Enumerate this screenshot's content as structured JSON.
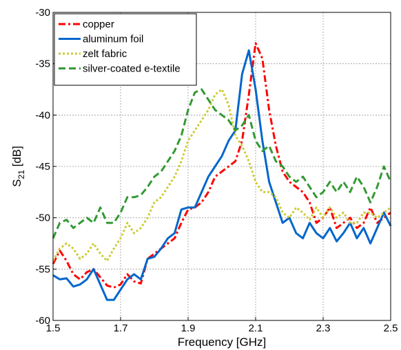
{
  "chart_data": {
    "type": "line",
    "x_label": "Frequency [GHz]",
    "y_label_parts": [
      "S",
      "21",
      " [dB]"
    ],
    "xlim": [
      1.5,
      2.5
    ],
    "xticks": [
      1.5,
      1.7,
      1.9,
      2.1,
      2.3,
      2.5
    ],
    "ylim": [
      -60,
      -30
    ],
    "yticks": [
      -60,
      -55,
      -50,
      -45,
      -40,
      -35,
      -30
    ],
    "grid": true,
    "legend": "upper-left",
    "x": [
      1.5,
      1.52,
      1.54,
      1.56,
      1.58,
      1.6,
      1.62,
      1.64,
      1.66,
      1.68,
      1.7,
      1.72,
      1.74,
      1.76,
      1.78,
      1.8,
      1.82,
      1.84,
      1.86,
      1.88,
      1.9,
      1.92,
      1.94,
      1.96,
      1.98,
      2.0,
      2.02,
      2.04,
      2.06,
      2.08,
      2.1,
      2.12,
      2.14,
      2.16,
      2.18,
      2.2,
      2.22,
      2.24,
      2.26,
      2.28,
      2.3,
      2.32,
      2.34,
      2.36,
      2.38,
      2.4,
      2.42,
      2.44,
      2.46,
      2.48,
      2.5
    ],
    "series": [
      {
        "name": "copper",
        "color": "#ff0000",
        "line_style": "dash-dot",
        "values": [
          -54.5,
          -53.2,
          -54.2,
          -55.5,
          -56.0,
          -55.3,
          -55.0,
          -55.8,
          -56.6,
          -56.8,
          -56.5,
          -55.5,
          -56.2,
          -56.4,
          -54.0,
          -53.5,
          -53.0,
          -52.5,
          -52.0,
          -50.5,
          -49.2,
          -49.0,
          -48.5,
          -47.5,
          -46.0,
          -45.5,
          -45.0,
          -44.5,
          -42.5,
          -38.0,
          -33.0,
          -34.5,
          -39.5,
          -43.0,
          -45.5,
          -46.5,
          -47.0,
          -47.5,
          -48.5,
          -50.5,
          -50.0,
          -49.0,
          -51.0,
          -50.5,
          -50.0,
          -51.0,
          -50.5,
          -49.0,
          -50.5,
          -50.0,
          -49.5
        ]
      },
      {
        "name": "aluminum foil",
        "color": "#0066cc",
        "line_style": "solid",
        "values": [
          -55.6,
          -56.0,
          -55.9,
          -56.7,
          -56.5,
          -56.0,
          -55.0,
          -56.5,
          -58.0,
          -58.0,
          -57.0,
          -56.0,
          -55.5,
          -56.0,
          -54.0,
          -53.8,
          -53.0,
          -52.0,
          -51.5,
          -49.2,
          -49.0,
          -49.0,
          -47.5,
          -46.0,
          -45.0,
          -44.0,
          -42.5,
          -41.5,
          -36.0,
          -33.7,
          -37.5,
          -42.5,
          -46.5,
          -48.5,
          -50.5,
          -50.0,
          -51.5,
          -52.0,
          -50.5,
          -51.5,
          -52.0,
          -51.0,
          -52.3,
          -51.5,
          -50.5,
          -52.0,
          -51.0,
          -52.5,
          -51.0,
          -49.5,
          -50.8
        ]
      },
      {
        "name": "zelt fabric",
        "color": "#cccc33",
        "line_style": "dotted",
        "values": [
          -54.2,
          -53.0,
          -52.5,
          -53.0,
          -54.0,
          -53.5,
          -52.5,
          -53.5,
          -54.2,
          -53.0,
          -52.0,
          -50.5,
          -51.5,
          -51.0,
          -50.0,
          -48.5,
          -48.0,
          -47.0,
          -46.0,
          -44.5,
          -42.5,
          -41.5,
          -40.5,
          -39.5,
          -38.0,
          -37.5,
          -39.0,
          -42.0,
          -43.0,
          -44.5,
          -46.5,
          -47.5,
          -47.5,
          -48.0,
          -49.5,
          -50.0,
          -49.0,
          -49.5,
          -50.2,
          -49.0,
          -50.0,
          -49.0,
          -50.0,
          -49.5,
          -50.5,
          -50.5,
          -49.5,
          -49.5,
          -50.0,
          -49.5,
          -49.0
        ]
      },
      {
        "name": "silver-coated e-textile",
        "color": "#339933",
        "line_style": "dashed",
        "values": [
          -52.0,
          -50.5,
          -50.2,
          -51.0,
          -50.5,
          -50.0,
          -50.5,
          -49.0,
          -50.5,
          -50.5,
          -49.5,
          -48.0,
          -48.0,
          -47.8,
          -47.0,
          -46.0,
          -45.5,
          -44.5,
          -43.5,
          -42.0,
          -39.5,
          -37.8,
          -37.5,
          -38.5,
          -39.5,
          -40.0,
          -40.5,
          -41.5,
          -41.0,
          -40.0,
          -42.5,
          -43.5,
          -43.0,
          -44.5,
          -45.0,
          -46.0,
          -46.5,
          -46.0,
          -47.0,
          -48.0,
          -47.5,
          -46.5,
          -47.5,
          -46.5,
          -47.5,
          -46.0,
          -47.0,
          -48.5,
          -47.0,
          -45.0,
          -46.5
        ]
      }
    ]
  }
}
